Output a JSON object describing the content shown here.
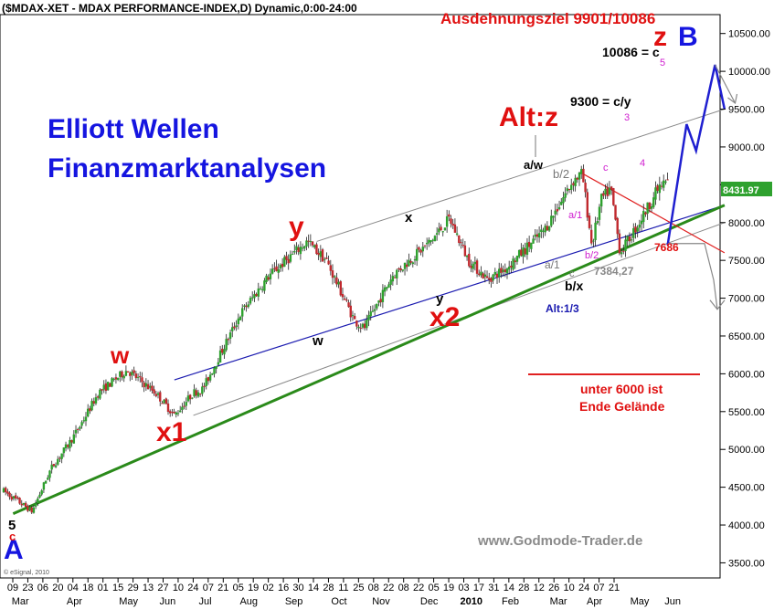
{
  "header": {
    "title": "($MDAX-XET - MDAX PERFORMANCE-INDEX,D) Dynamic,0:00-24:00",
    "target": "Ausdehnungsziel 9901/10086"
  },
  "branding": {
    "headline1": "Elliott Wellen",
    "headline2": "Finanzmarktanalysen",
    "footer_url": "www.Godmode-Trader.de",
    "copyright": "© eSignal, 2010"
  },
  "colors": {
    "up_candle": "#2ea12e",
    "down_candle": "#c0292e",
    "support_line": "#2a8a1a",
    "blue_line": "#1b1bb0",
    "red_line": "#e02020",
    "channel": "#8a8a8a",
    "projection": "#1f1fd0"
  },
  "chart_data": {
    "type": "candlestick",
    "ylim": [
      3300,
      10750
    ],
    "y_ticks": [
      3500,
      4000,
      4500,
      5000,
      5500,
      6000,
      6500,
      7000,
      7500,
      8000,
      8500,
      9000,
      9500,
      10000,
      10500
    ],
    "y_tick_labels": [
      "3500.00",
      "4000.00",
      "4500.00",
      "5000.00",
      "5500.00",
      "6000.00",
      "6500.00",
      "7000.00",
      "7500.00",
      "8000.00",
      "8500.00",
      "9000.00",
      "9500.00",
      "10000.00",
      "10500.00"
    ],
    "x_day_labels": [
      "09",
      "23",
      "06",
      "20",
      "04",
      "18",
      "01",
      "15",
      "29",
      "13",
      "27",
      "10",
      "24",
      "07",
      "21",
      "05",
      "19",
      "02",
      "16",
      "30",
      "14",
      "28",
      "11",
      "25",
      "08",
      "22",
      "08",
      "22",
      "05",
      "19",
      "03",
      "17",
      "31",
      "14",
      "28",
      "12",
      "26",
      "10",
      "24",
      "07",
      "21"
    ],
    "x_month_labels": [
      "Mar",
      "Apr",
      "May",
      "Jun",
      "Jul",
      "Aug",
      "Sep",
      "Oct",
      "Nov",
      "Dec",
      "2010",
      "Feb",
      "Mar",
      "Apr",
      "May",
      "Jun"
    ],
    "last_price": "8431.97",
    "price_path": [
      [
        0,
        4450
      ],
      [
        3,
        4180
      ],
      [
        5,
        4750
      ],
      [
        7,
        5100
      ],
      [
        8,
        5300
      ],
      [
        10,
        5750
      ],
      [
        13,
        6050
      ],
      [
        16,
        5750
      ],
      [
        18,
        5450
      ],
      [
        20,
        5750
      ],
      [
        21,
        5800
      ],
      [
        25,
        6800
      ],
      [
        28,
        7300
      ],
      [
        32,
        7750
      ],
      [
        34,
        7500
      ],
      [
        37,
        6700
      ],
      [
        38,
        6600
      ],
      [
        41,
        7300
      ],
      [
        45,
        7750
      ],
      [
        47,
        8050
      ],
      [
        49,
        7500
      ],
      [
        51,
        7250
      ],
      [
        53,
        7400
      ],
      [
        57,
        7900
      ],
      [
        60,
        8550
      ],
      [
        61,
        8650
      ],
      [
        62,
        7700
      ],
      [
        63,
        8300
      ],
      [
        64,
        8450
      ],
      [
        65,
        7600
      ],
      [
        67,
        8000
      ],
      [
        69,
        8450
      ],
      [
        70,
        8550
      ]
    ],
    "projections": [
      {
        "name": "target-path",
        "points": [
          [
            70,
            7700
          ],
          [
            72,
            9300
          ],
          [
            73,
            8950
          ],
          [
            75,
            10086
          ],
          [
            76,
            9500
          ]
        ]
      },
      {
        "name": "alt-path",
        "points": [
          [
            69,
            7800
          ],
          [
            71,
            7384
          ],
          [
            72,
            6750
          ]
        ]
      }
    ],
    "levels": {
      "level_7686": 7686,
      "level_7384": 7384.27,
      "level_6000": 5970
    },
    "channel_lines": [
      {
        "name": "upper-channel",
        "points": [
          [
            33,
            7750
          ],
          [
            76,
            9500
          ]
        ]
      },
      {
        "name": "mid-channel",
        "points": [
          [
            20,
            5450
          ],
          [
            76,
            8000
          ]
        ]
      },
      {
        "name": "blue-line",
        "points": [
          [
            18,
            5920
          ],
          [
            76,
            8230
          ]
        ]
      },
      {
        "name": "green-support",
        "points": [
          [
            1,
            4150
          ],
          [
            76,
            8230
          ]
        ]
      },
      {
        "name": "red-line",
        "points": [
          [
            61,
            8650
          ],
          [
            76,
            7600
          ]
        ]
      }
    ],
    "wave_labels": {
      "w": "w",
      "y": "y",
      "x1": "x1",
      "x2": "x2",
      "x_small": "x",
      "w_small": "w",
      "y_small": "y",
      "alt_z": "Alt:z",
      "z": "z",
      "B": "B",
      "A": "A",
      "five": "5",
      "c_red": "c",
      "a_w": "a/w",
      "b_2": "b/2",
      "a_1": "a/1",
      "c_small": "c",
      "b_x": "b/x",
      "alt_13": "Alt:1/3",
      "a1_mag": "a/1",
      "b2_mag": "b/2",
      "c_mag": "c",
      "wave3": "3",
      "wave4": "4",
      "wave5": "5",
      "target_9300": "9300 = c/y",
      "target_10086": "10086 = c",
      "level_7686": "7686",
      "level_7384": "7384,27",
      "unter1": "unter 6000 ist",
      "unter2": "Ende Gelände"
    }
  }
}
